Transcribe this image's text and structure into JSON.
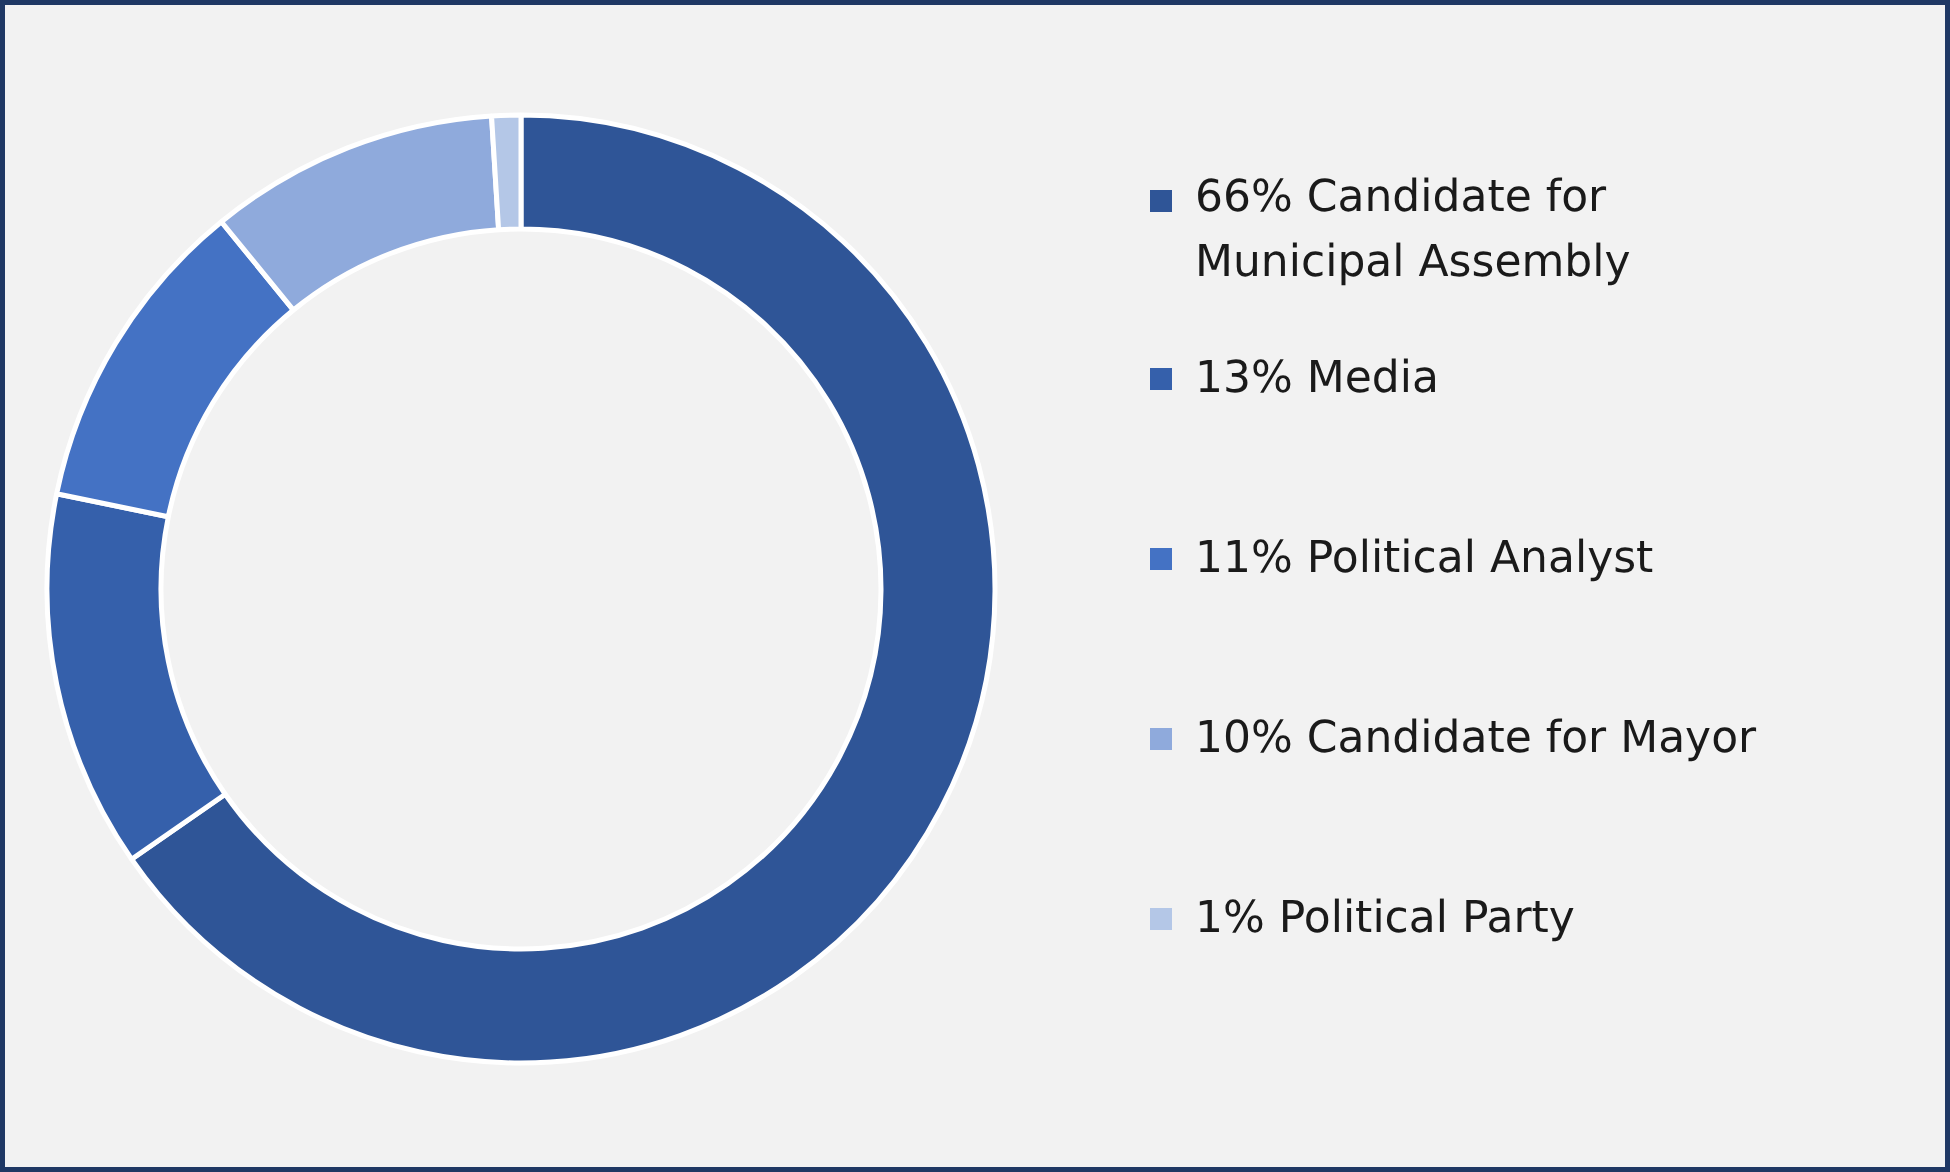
{
  "chart_data": {
    "type": "donut",
    "categories": [
      "Candidate for Municipal Assembly",
      "Media",
      "Political Analyst",
      "Candidate for Mayor",
      "Political Party"
    ],
    "values": [
      66,
      13,
      11,
      10,
      1
    ],
    "value_labels": [
      "66%",
      "13%",
      "11%",
      "10%",
      "1%"
    ],
    "colors": [
      "#2f5597",
      "#3560ab",
      "#4472c4",
      "#8faadc",
      "#b4c7e7"
    ],
    "legend": "right"
  }
}
